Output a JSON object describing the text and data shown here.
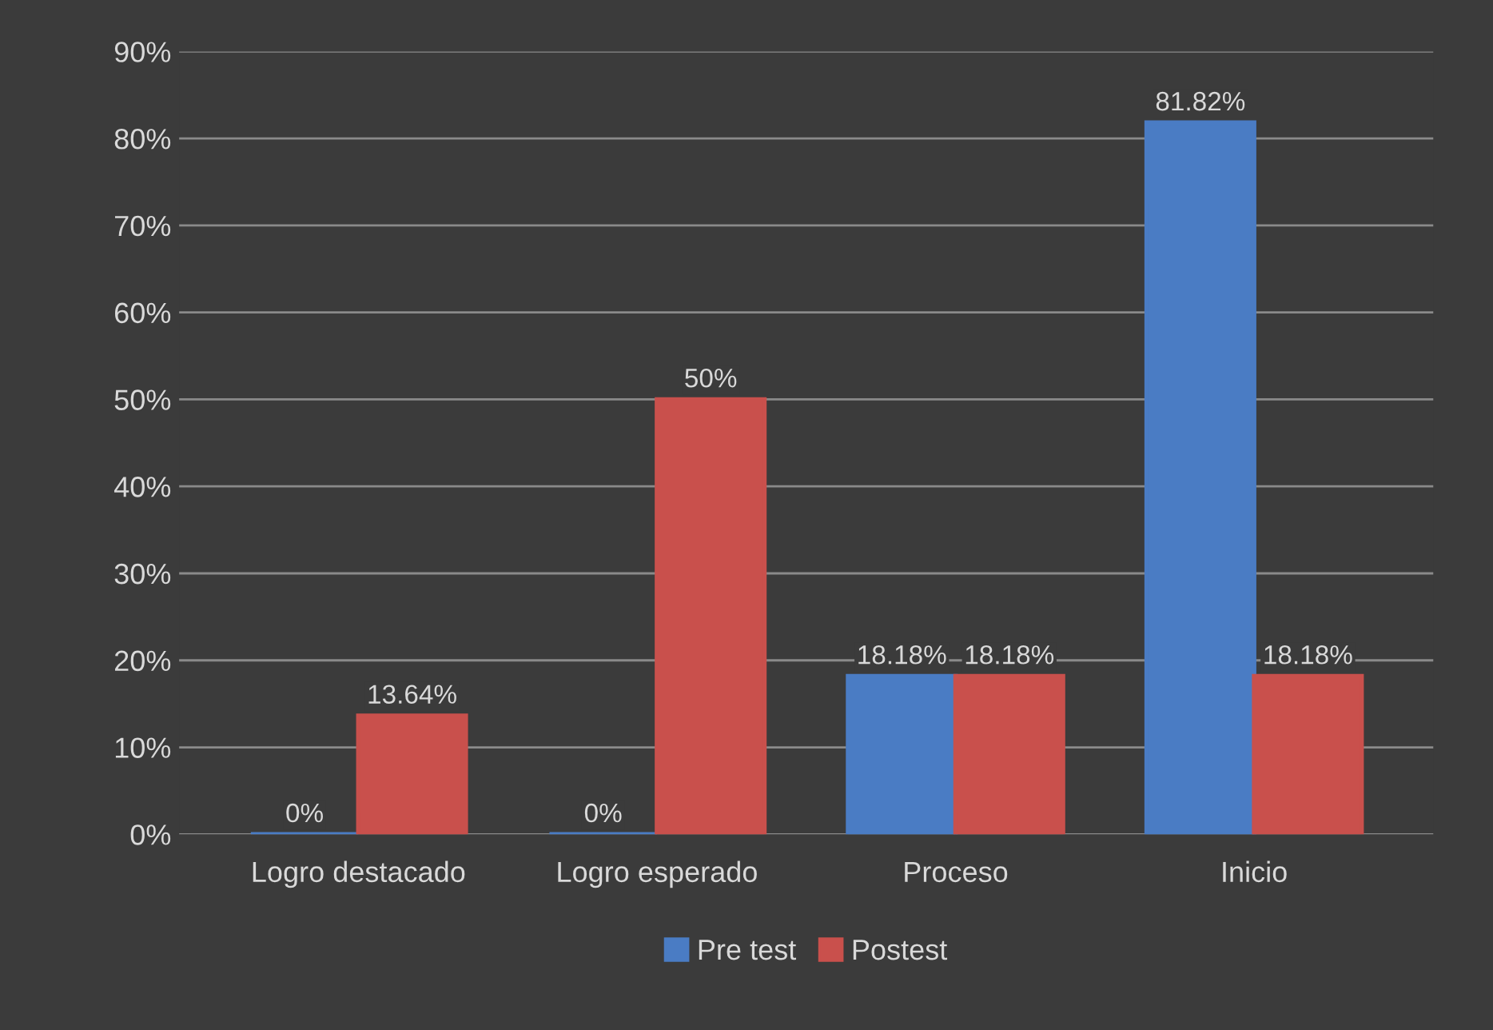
{
  "chart_data": {
    "type": "bar",
    "categories": [
      "Logro destacado",
      "Logro esperado",
      "Proceso",
      "Inicio"
    ],
    "series": [
      {
        "name": "Pre test",
        "color": "#4a7cc4",
        "values": [
          0,
          0,
          18.18,
          81.82
        ],
        "value_labels": [
          "0%",
          "0%",
          "18.18%",
          "81.82%"
        ]
      },
      {
        "name": "Postest",
        "color": "#c9504c",
        "values": [
          13.64,
          50,
          18.18,
          18.18
        ],
        "value_labels": [
          "13.64%",
          "50%",
          "18.18%",
          "18.18%"
        ]
      }
    ],
    "ylim": [
      0,
      90
    ],
    "yticks": [
      {
        "value": 0,
        "label": "0%"
      },
      {
        "value": 10,
        "label": "10%"
      },
      {
        "value": 20,
        "label": "20%"
      },
      {
        "value": 30,
        "label": "30%"
      },
      {
        "value": 40,
        "label": "40%"
      },
      {
        "value": 50,
        "label": "50%"
      },
      {
        "value": 60,
        "label": "60%"
      },
      {
        "value": 70,
        "label": "70%"
      },
      {
        "value": 80,
        "label": "80%"
      },
      {
        "value": 90,
        "label": "90%"
      }
    ],
    "grid": "y",
    "legend": "bottom"
  }
}
